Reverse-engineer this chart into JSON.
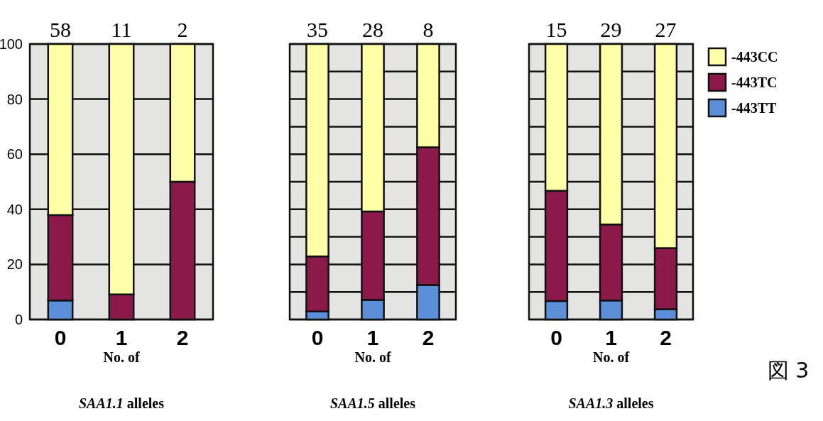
{
  "chart_data": [
    {
      "type": "bar",
      "stacked": true,
      "categories": [
        "0",
        "1",
        "2"
      ],
      "xlabel": "No. of SAA1.1 alleles",
      "ylim": [
        0,
        100
      ],
      "yticks": [
        0,
        20,
        40,
        60,
        80,
        100
      ],
      "grid": "y",
      "annotations": [
        {
          "text": "58",
          "x": "0",
          "y": 100
        },
        {
          "text": "11",
          "x": "1",
          "y": 100
        },
        {
          "text": "2",
          "x": "2",
          "y": 100
        }
      ],
      "series": [
        {
          "color": "#5b8fd8",
          "values": [
            6.9,
            0,
            0
          ]
        },
        {
          "color": "#8b1a4a",
          "values": [
            31.0,
            9.1,
            50
          ]
        },
        {
          "color": "#ffffa8",
          "values": [
            62.1,
            90.9,
            50
          ]
        }
      ]
    },
    {
      "type": "bar",
      "stacked": true,
      "categories": [
        "0",
        "1",
        "2"
      ],
      "xlabel": "No. of SAA1.5 alleles",
      "ylim": [
        0,
        100
      ],
      "yticks": [
        {
          "value": 0,
          "label": null
        },
        {
          "value": 10,
          "label": null
        },
        {
          "value": 20,
          "label": null
        },
        {
          "value": 30,
          "label": null
        },
        {
          "value": 40,
          "label": null
        },
        {
          "value": 50,
          "label": null
        },
        {
          "value": 60,
          "label": null
        },
        {
          "value": 70,
          "label": null
        },
        {
          "value": 80,
          "label": null
        },
        {
          "value": 90,
          "label": null
        },
        {
          "value": 100,
          "label": null
        }
      ],
      "tick_labels": "x",
      "grid": "y",
      "annotations": [
        {
          "text": "35",
          "x": "0",
          "y": 100
        },
        {
          "text": "28",
          "x": "1",
          "y": 100
        },
        {
          "text": "8",
          "x": "2",
          "y": 100
        }
      ],
      "series": [
        {
          "color": "#5b8fd8",
          "values": [
            2.9,
            7.1,
            12.5
          ]
        },
        {
          "color": "#8b1a4a",
          "values": [
            20.0,
            32.1,
            50
          ]
        },
        {
          "color": "#ffffa8",
          "values": [
            77.1,
            60.8,
            37.5
          ]
        }
      ]
    },
    {
      "type": "bar",
      "stacked": true,
      "categories": [
        "0",
        "1",
        "2"
      ],
      "xlabel": "No. of SAA1.3 alleles",
      "ylim": [
        0,
        100
      ],
      "yticks": [
        {
          "value": 0,
          "label": null
        },
        {
          "value": 10,
          "label": null
        },
        {
          "value": 20,
          "label": null
        },
        {
          "value": 30,
          "label": null
        },
        {
          "value": 40,
          "label": null
        },
        {
          "value": 50,
          "label": null
        },
        {
          "value": 60,
          "label": null
        },
        {
          "value": 70,
          "label": null
        },
        {
          "value": 80,
          "label": null
        },
        {
          "value": 90,
          "label": null
        },
        {
          "value": 100,
          "label": null
        }
      ],
      "tick_labels": "x",
      "grid": "y",
      "legend": "right",
      "annotations": [
        {
          "text": "15",
          "x": "0",
          "y": 100
        },
        {
          "text": "29",
          "x": "1",
          "y": 100
        },
        {
          "text": "27",
          "x": "2",
          "y": 100
        },
        "図 3"
      ],
      "series": [
        {
          "name": "-443TT",
          "color": "#5b8fd8",
          "values": [
            6.7,
            6.9,
            3.7
          ]
        },
        {
          "name": "-443TC",
          "color": "#8b1a4a",
          "values": [
            40.0,
            27.6,
            22.2
          ]
        },
        {
          "name": "-443CC",
          "color": "#ffffa8",
          "values": [
            53.3,
            65.5,
            74.1
          ]
        }
      ]
    }
  ]
}
